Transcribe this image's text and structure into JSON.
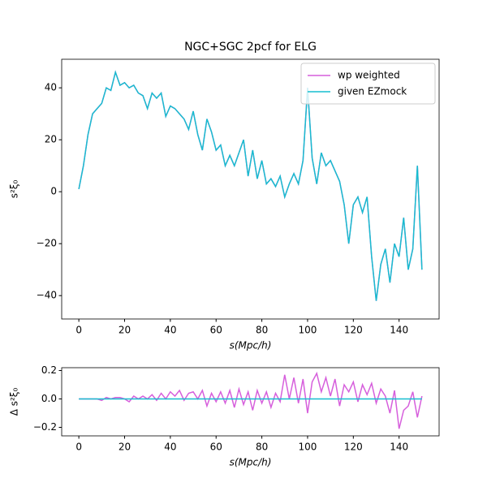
{
  "chart_data": [
    {
      "type": "line",
      "title": "NGC+SGC 2pcf for ELG",
      "xlabel": "s(Mpc/h)",
      "ylabel": "s²ξ₀",
      "x": [
        0,
        2,
        4,
        6,
        8,
        10,
        12,
        14,
        16,
        18,
        20,
        22,
        24,
        26,
        28,
        30,
        32,
        34,
        36,
        38,
        40,
        42,
        44,
        46,
        48,
        50,
        52,
        54,
        56,
        58,
        60,
        62,
        64,
        66,
        68,
        70,
        72,
        74,
        76,
        78,
        80,
        82,
        84,
        86,
        88,
        90,
        92,
        94,
        96,
        98,
        100,
        102,
        104,
        106,
        108,
        110,
        112,
        114,
        116,
        118,
        120,
        122,
        124,
        126,
        128,
        130,
        132,
        134,
        136,
        138,
        140,
        142,
        144,
        146,
        148,
        150
      ],
      "series": [
        {
          "name": "wp weighted",
          "color": "#d65fdc",
          "values": [
            1,
            10,
            22,
            30,
            32,
            34,
            40,
            39,
            46,
            41,
            42,
            40,
            41,
            38,
            37,
            32,
            38,
            36,
            38,
            29,
            33,
            32,
            30,
            28,
            24,
            31,
            22,
            16,
            28,
            23,
            16,
            18,
            10,
            14,
            10,
            15,
            20,
            6,
            16,
            5,
            12,
            3,
            5,
            2,
            6,
            -2,
            3,
            7,
            3,
            12,
            40,
            13,
            3,
            15,
            10,
            12,
            8,
            4,
            -5,
            -20,
            -5,
            -2,
            -8,
            -2,
            -25,
            -42,
            -28,
            -22,
            -35,
            -20,
            -25,
            -10,
            -30,
            -22,
            10,
            -30
          ]
        },
        {
          "name": "given EZmock",
          "color": "#17becf",
          "values": [
            1,
            10,
            22,
            30,
            32,
            34,
            40,
            39,
            46,
            41,
            42,
            40,
            41,
            38,
            37,
            32,
            38,
            36,
            38,
            29,
            33,
            32,
            30,
            28,
            24,
            31,
            22,
            16,
            28,
            23,
            16,
            18,
            10,
            14,
            10,
            15,
            20,
            6,
            16,
            5,
            12,
            3,
            5,
            2,
            6,
            -2,
            3,
            7,
            3,
            12,
            40,
            13,
            3,
            15,
            10,
            12,
            8,
            4,
            -5,
            -20,
            -5,
            -2,
            -8,
            -2,
            -25,
            -42,
            -28,
            -22,
            -35,
            -20,
            -25,
            -10,
            -30,
            -22,
            10,
            -30
          ]
        }
      ],
      "xlim": [
        -7.5,
        157.5
      ],
      "xticks": [
        0,
        20,
        40,
        60,
        80,
        100,
        120,
        140
      ],
      "ylim": [
        -49,
        51
      ],
      "yticks": [
        {
          "value": -40,
          "label": "−40"
        },
        {
          "value": -20,
          "label": "−20"
        },
        0,
        20,
        40
      ],
      "legend": "upper right"
    },
    {
      "type": "line",
      "xlabel": "s(Mpc/h)",
      "ylabel": "Δ s²ξ₀",
      "x": [
        0,
        2,
        4,
        6,
        8,
        10,
        12,
        14,
        16,
        18,
        20,
        22,
        24,
        26,
        28,
        30,
        32,
        34,
        36,
        38,
        40,
        42,
        44,
        46,
        48,
        50,
        52,
        54,
        56,
        58,
        60,
        62,
        64,
        66,
        68,
        70,
        72,
        74,
        76,
        78,
        80,
        82,
        84,
        86,
        88,
        90,
        92,
        94,
        96,
        98,
        100,
        102,
        104,
        106,
        108,
        110,
        112,
        114,
        116,
        118,
        120,
        122,
        124,
        126,
        128,
        130,
        132,
        134,
        136,
        138,
        140,
        142,
        144,
        146,
        148,
        150
      ],
      "series": [
        {
          "color": "#d65fdc",
          "values": [
            0,
            0,
            0,
            0,
            0,
            -0.01,
            0.01,
            0,
            0.01,
            0.01,
            0,
            -0.02,
            0.02,
            0,
            0.02,
            0,
            0.03,
            -0.01,
            0.04,
            0,
            0.05,
            0.02,
            0.06,
            -0.01,
            0.04,
            0.05,
            0,
            0.06,
            -0.05,
            0.04,
            -0.02,
            0.05,
            -0.03,
            0.06,
            -0.06,
            0.07,
            -0.04,
            0.05,
            -0.08,
            0.06,
            -0.03,
            0.05,
            -0.06,
            0.04,
            -0.02,
            0.17,
            0,
            0.15,
            -0.03,
            0.14,
            -0.1,
            0.12,
            0.18,
            0.05,
            0.15,
            0.02,
            0.14,
            -0.05,
            0.1,
            0.05,
            0.12,
            -0.02,
            0.1,
            0.03,
            0.11,
            -0.03,
            0.07,
            0.02,
            -0.1,
            0.06,
            -0.21,
            -0.08,
            -0.05,
            0.05,
            -0.13,
            0.02
          ]
        },
        {
          "color": "#17becf",
          "values": [
            0,
            0,
            0,
            0,
            0,
            0,
            0,
            0,
            0,
            0,
            0,
            0,
            0,
            0,
            0,
            0,
            0,
            0,
            0,
            0,
            0,
            0,
            0,
            0,
            0,
            0,
            0,
            0,
            0,
            0,
            0,
            0,
            0,
            0,
            0,
            0,
            0,
            0,
            0,
            0,
            0,
            0,
            0,
            0,
            0,
            0,
            0,
            0,
            0,
            0,
            0,
            0,
            0,
            0,
            0,
            0,
            0,
            0,
            0,
            0,
            0,
            0,
            0,
            0,
            0,
            0,
            0,
            0,
            0,
            0,
            0,
            0,
            0,
            0,
            0,
            0
          ]
        }
      ],
      "xlim": [
        -7.5,
        157.5
      ],
      "xticks": [
        0,
        20,
        40,
        60,
        80,
        100,
        120,
        140
      ],
      "ylim": [
        -0.26,
        0.22
      ],
      "yticks": [
        {
          "value": -0.2,
          "label": "−0.2"
        },
        {
          "value": 0,
          "label": "0.0"
        },
        {
          "value": 0.2,
          "label": "0.2"
        }
      ]
    }
  ]
}
